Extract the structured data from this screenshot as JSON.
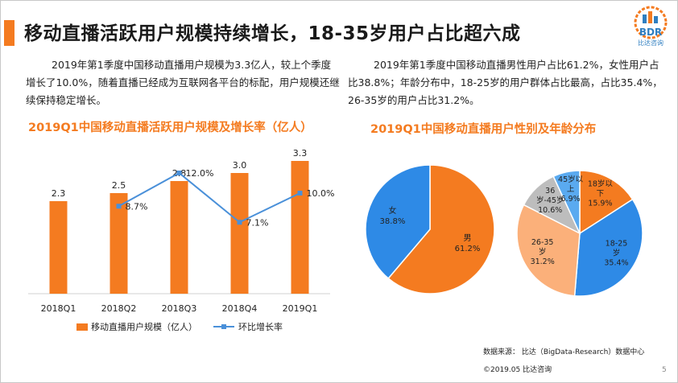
{
  "page": {
    "title": "移动直播活跃用户规模持续增长，18-35岁用户占比超六成",
    "logo_text": "BDR",
    "logo_sub": "比达咨询",
    "para_left": "2019年第1季度中国移动直播用户规模为3.3亿人，较上个季度增长了10.0%，随着直播已经成为互联网各平台的标配，用户规模还继续保持稳定增长。",
    "para_right": "2019年第1季度中国移动直播男性用户占比61.2%，女性用户占比38.8%；年龄分布中，18-25岁的用户群体占比最高，占比35.4%，26-35岁的用户占比31.2%。",
    "source": "数据来源： 比达（BigData-Research）数据中心",
    "copyright": "©2019.05  比达咨询",
    "page_number": "5",
    "accent_color": "#f47b20",
    "blue_color": "#2e8ae6"
  },
  "chart_data": [
    {
      "type": "bar",
      "title": "2019Q1中国移动直播活跃用户规模及增长率（亿人）",
      "categories": [
        "2018Q1",
        "2018Q2",
        "2018Q3",
        "2018Q4",
        "2019Q1"
      ],
      "series": [
        {
          "name": "移动直播用户规模（亿人）",
          "type": "bar",
          "values": [
            2.3,
            2.5,
            2.8,
            3.0,
            3.3
          ],
          "labels": [
            "2.3",
            "2.5",
            "2.8",
            "3.0",
            "3.3"
          ],
          "color": "#f47b20"
        },
        {
          "name": "环比增长率",
          "type": "line",
          "values": [
            null,
            8.7,
            12.0,
            7.1,
            10.0
          ],
          "labels": [
            "",
            "8.7%",
            "12.0%",
            "7.1%",
            "10.0%"
          ],
          "color": "#4a90d9"
        }
      ],
      "ylim": [
        0,
        3.5
      ],
      "y2lim": [
        0,
        14
      ],
      "legend": "bottom"
    },
    {
      "type": "pie",
      "title": "2019Q1中国移动直播用户性别及年龄分布",
      "subcharts": [
        {
          "name": "gender",
          "slices": [
            {
              "label": "男",
              "value": 61.2,
              "pct": "61.2%",
              "color": "#f47b20"
            },
            {
              "label": "女",
              "value": 38.8,
              "pct": "38.8%",
              "color": "#2e8ae6"
            }
          ]
        },
        {
          "name": "age",
          "slices": [
            {
              "label": "18岁以下",
              "value": 15.9,
              "pct": "15.9%",
              "color": "#f47b20"
            },
            {
              "label": "18-25岁",
              "value": 35.4,
              "pct": "35.4%",
              "color": "#2e8ae6"
            },
            {
              "label": "26-35岁",
              "value": 31.2,
              "pct": "31.2%",
              "color": "#fbb07a"
            },
            {
              "label": "36岁-45岁",
              "value": 10.6,
              "pct": "10.6%",
              "color": "#bdbdbd"
            },
            {
              "label": "45岁以上",
              "value": 6.9,
              "pct": "6.9%",
              "color": "#5aaaf0"
            }
          ]
        }
      ]
    }
  ]
}
